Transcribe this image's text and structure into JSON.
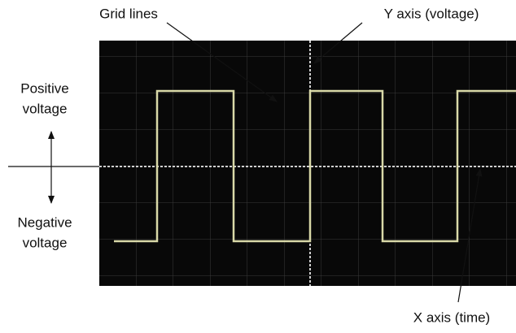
{
  "labels": {
    "grid_lines": "Grid lines",
    "y_axis": "Y axis (voltage)",
    "positive": [
      "Positive",
      "voltage"
    ],
    "negative": [
      "Negative",
      "voltage"
    ],
    "x_axis": "X axis (time)"
  }
}
